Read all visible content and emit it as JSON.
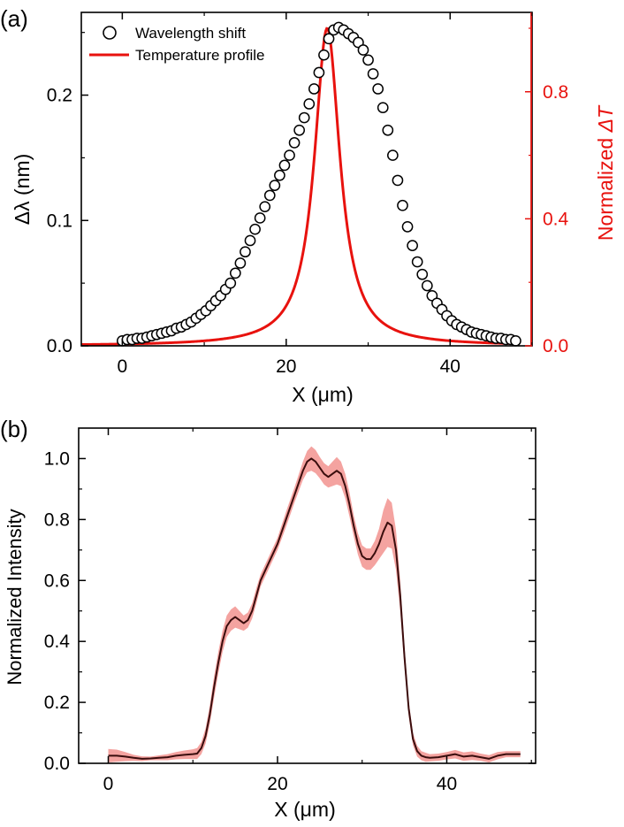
{
  "panel_a": {
    "label": "(a)",
    "chart_data": {
      "type": "scatter",
      "xlabel": "X (μm)",
      "ylabel": "Δλ (nm)",
      "y2label_prefix": "Normalized ",
      "y2label_symbol": "ΔT",
      "xlim": [
        -5,
        50
      ],
      "ylim": [
        0,
        0.266
      ],
      "y2lim": [
        0,
        1.05
      ],
      "xticks": [
        0,
        20,
        40
      ],
      "xtick_labels": [
        "0",
        "20",
        "40"
      ],
      "yticks": [
        0,
        0.1,
        0.2
      ],
      "ytick_labels": [
        "0.0",
        "0.1",
        "0.2"
      ],
      "y2ticks": [
        0,
        0.4,
        0.8
      ],
      "y2tick_labels": [
        "0.0",
        "0.4",
        "0.8"
      ],
      "legend": {
        "placement": "top-left",
        "entries": [
          {
            "label": "Wavelength shift",
            "marker": "open-circle"
          },
          {
            "label": "Temperature profile",
            "marker": "red-line"
          }
        ]
      },
      "series": [
        {
          "name": "Wavelength shift",
          "axis": "left",
          "x": [
            0,
            0.6,
            1.2,
            1.8,
            2.4,
            3.0,
            3.6,
            4.2,
            4.8,
            5.4,
            6.0,
            6.6,
            7.2,
            7.8,
            8.4,
            9.0,
            9.6,
            10.2,
            10.8,
            11.4,
            12.0,
            12.6,
            13.2,
            13.8,
            14.4,
            15.0,
            15.6,
            16.2,
            16.8,
            17.4,
            18.0,
            18.6,
            19.2,
            19.8,
            20.4,
            21.0,
            21.6,
            22.2,
            22.8,
            23.4,
            24.0,
            24.6,
            25.2,
            25.8,
            26.4,
            27.0,
            27.6,
            28.2,
            28.8,
            29.4,
            30.0,
            30.6,
            31.2,
            31.8,
            32.4,
            33.0,
            33.6,
            34.2,
            34.8,
            35.4,
            36.0,
            36.6,
            37.2,
            37.8,
            38.4,
            39.0,
            39.6,
            40.2,
            40.8,
            41.4,
            42.0,
            42.6,
            43.2,
            43.8,
            44.4,
            45.0,
            45.6,
            46.2,
            46.8,
            47.4,
            48.0
          ],
          "y": [
            0.004,
            0.005,
            0.005,
            0.006,
            0.006,
            0.007,
            0.008,
            0.009,
            0.01,
            0.011,
            0.012,
            0.014,
            0.015,
            0.017,
            0.019,
            0.022,
            0.025,
            0.028,
            0.032,
            0.036,
            0.04,
            0.045,
            0.05,
            0.058,
            0.066,
            0.075,
            0.084,
            0.093,
            0.102,
            0.111,
            0.12,
            0.128,
            0.136,
            0.144,
            0.152,
            0.162,
            0.172,
            0.182,
            0.193,
            0.205,
            0.218,
            0.232,
            0.245,
            0.252,
            0.254,
            0.252,
            0.249,
            0.246,
            0.242,
            0.236,
            0.228,
            0.217,
            0.205,
            0.19,
            0.172,
            0.152,
            0.132,
            0.112,
            0.095,
            0.08,
            0.067,
            0.057,
            0.048,
            0.04,
            0.034,
            0.029,
            0.024,
            0.02,
            0.017,
            0.015,
            0.013,
            0.011,
            0.01,
            0.009,
            0.008,
            0.007,
            0.006,
            0.006,
            0.005,
            0.005,
            0.004
          ]
        },
        {
          "name": "Temperature profile",
          "axis": "right",
          "peak_x": 25,
          "peak_y": 1.0,
          "half_width": 1.9
        }
      ]
    }
  },
  "panel_b": {
    "label": "(b)",
    "chart_data": {
      "type": "line",
      "xlabel": "X (μm)",
      "ylabel": "Normalized Intensity",
      "xlim": [
        -3.5,
        50.5
      ],
      "ylim": [
        0,
        1.1
      ],
      "xticks": [
        0,
        20,
        40
      ],
      "xtick_labels": [
        "0",
        "20",
        "40"
      ],
      "yticks": [
        0,
        0.2,
        0.4,
        0.6,
        0.8,
        1.0
      ],
      "ytick_labels": [
        "0.0",
        "0.2",
        "0.4",
        "0.6",
        "0.8",
        "1.0"
      ],
      "series": [
        {
          "name": "",
          "x": [
            0,
            1,
            2,
            3,
            4,
            5,
            6,
            7,
            8,
            9,
            10,
            10.5,
            11,
            11.5,
            12,
            12.5,
            13,
            13.5,
            14,
            14.5,
            15,
            15.5,
            16,
            16.5,
            17,
            17.5,
            18,
            19,
            20,
            21,
            22,
            23,
            23.5,
            24,
            24.5,
            25,
            25.5,
            26,
            26.5,
            27,
            27.5,
            28,
            28.5,
            29,
            29.5,
            30,
            30.5,
            31,
            31.5,
            32,
            32.5,
            33,
            33.5,
            34,
            34.5,
            35,
            35.5,
            36,
            36.5,
            37,
            37.5,
            38,
            39,
            40,
            41,
            42,
            43,
            44,
            45,
            46,
            47,
            48,
            48.7
          ],
          "y": [
            0.025,
            0.025,
            0.022,
            0.018,
            0.015,
            0.016,
            0.018,
            0.02,
            0.025,
            0.028,
            0.03,
            0.032,
            0.05,
            0.09,
            0.16,
            0.25,
            0.33,
            0.4,
            0.45,
            0.47,
            0.48,
            0.47,
            0.46,
            0.47,
            0.5,
            0.55,
            0.6,
            0.66,
            0.72,
            0.8,
            0.88,
            0.96,
            0.99,
            1.0,
            0.99,
            0.97,
            0.95,
            0.94,
            0.95,
            0.96,
            0.95,
            0.91,
            0.85,
            0.78,
            0.72,
            0.68,
            0.67,
            0.67,
            0.69,
            0.72,
            0.76,
            0.79,
            0.78,
            0.7,
            0.55,
            0.35,
            0.18,
            0.08,
            0.04,
            0.025,
            0.02,
            0.018,
            0.02,
            0.025,
            0.03,
            0.022,
            0.025,
            0.02,
            0.015,
            0.025,
            0.03,
            0.03,
            0.03
          ],
          "band": [
            0.022,
            0.02,
            0.015,
            0.01,
            0.008,
            0.006,
            0.008,
            0.01,
            0.012,
            0.014,
            0.016,
            0.018,
            0.02,
            0.025,
            0.03,
            0.035,
            0.035,
            0.035,
            0.035,
            0.035,
            0.035,
            0.03,
            0.025,
            0.025,
            0.025,
            0.025,
            0.02,
            0.02,
            0.02,
            0.025,
            0.025,
            0.03,
            0.035,
            0.04,
            0.038,
            0.035,
            0.035,
            0.035,
            0.04,
            0.045,
            0.04,
            0.04,
            0.04,
            0.035,
            0.035,
            0.035,
            0.035,
            0.035,
            0.04,
            0.05,
            0.07,
            0.08,
            0.075,
            0.065,
            0.05,
            0.035,
            0.025,
            0.02,
            0.018,
            0.015,
            0.015,
            0.012,
            0.012,
            0.012,
            0.014,
            0.014,
            0.014,
            0.012,
            0.012,
            0.012,
            0.01,
            0.01,
            0.01
          ],
          "line_color": "#3a0d0d",
          "band_color": "#f4a3a0"
        }
      ]
    }
  },
  "colors": {
    "temperature_line": "#e8120e",
    "right_axis": "#e8120e",
    "band_fill": "#f4a3a0",
    "mean_line": "#3a0d0d"
  }
}
